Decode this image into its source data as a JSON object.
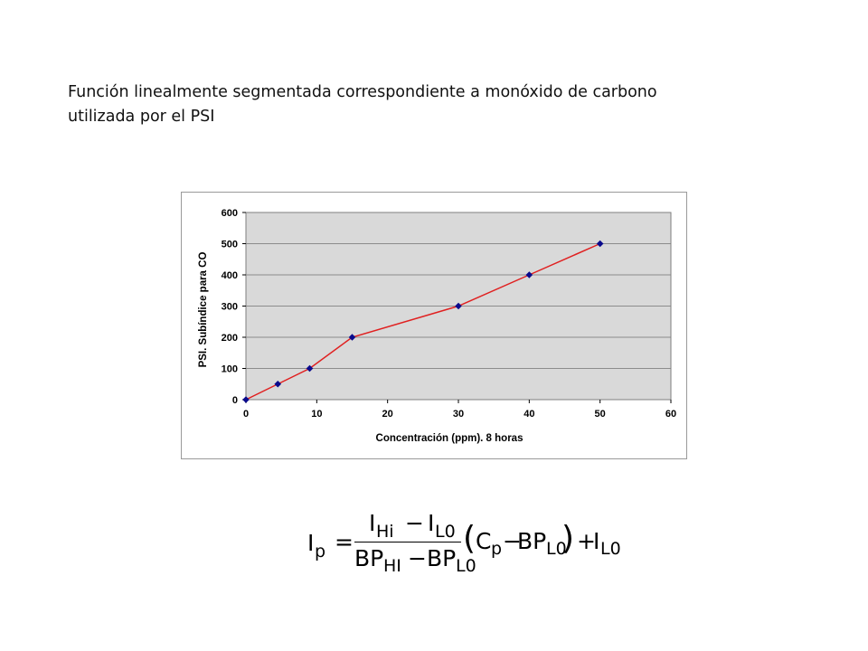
{
  "title": {
    "line1": "Función linealmente segmentada correspondiente a monóxido de carbono",
    "line2": "utilizada por el PSI"
  },
  "chart_data": {
    "type": "line",
    "x": [
      0,
      4.5,
      9,
      15,
      30,
      40,
      50
    ],
    "series": [
      {
        "values": [
          0,
          50,
          100,
          200,
          300,
          400,
          500
        ]
      }
    ],
    "xlabel": "Concentración (ppm). 8 horas",
    "ylabel": "PSI. Subíndice  para CO",
    "xlim": [
      0,
      60
    ],
    "ylim": [
      0,
      600
    ],
    "xticks": [
      0,
      10,
      20,
      30,
      40,
      50,
      60
    ],
    "yticks": [
      0,
      100,
      200,
      300,
      400,
      500,
      600
    ],
    "grid": "horizontal",
    "legend": "none",
    "colors": {
      "line": "#e02020",
      "marker": "#0a0a8c",
      "plot_background": "#d9d9d9",
      "gridline": "#8c8c8c"
    }
  },
  "formula": {
    "lhs": "I",
    "lhs_sub": "p",
    "equals": "=",
    "num_a": "I",
    "num_a_sub": "Hi",
    "num_minus": "−",
    "num_b": "I",
    "num_b_sub": "L0",
    "den_a": "BP",
    "den_a_sub": "HI",
    "den_minus": "−",
    "den_b": "BP",
    "den_b_sub": "L0",
    "paren_open": "(",
    "c": "C",
    "c_sub": "p",
    "paren_minus": "−",
    "bp": "BP",
    "bp_sub": "L0",
    "paren_close": ")",
    "plus": "+",
    "tail": "I",
    "tail_sub": "L0"
  }
}
